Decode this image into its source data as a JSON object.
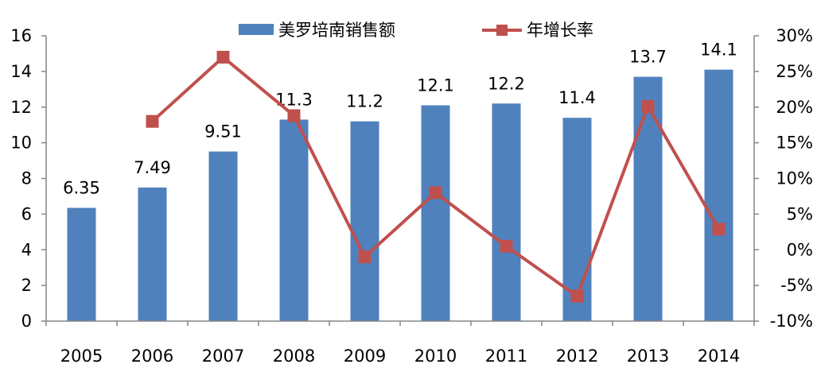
{
  "chart_data": {
    "type": "bar",
    "categories": [
      "2005",
      "2006",
      "2007",
      "2008",
      "2009",
      "2010",
      "2011",
      "2012",
      "2013",
      "2014"
    ],
    "series": [
      {
        "name": "美罗培南销售额",
        "type": "bar",
        "axis": "left",
        "values": [
          6.35,
          7.49,
          9.51,
          11.3,
          11.2,
          12.1,
          12.2,
          11.4,
          13.7,
          14.1
        ],
        "data_labels": [
          "6.35",
          "7.49",
          "9.51",
          "11.3",
          "11.2",
          "12.1",
          "12.2",
          "11.4",
          "13.7",
          "14.1"
        ]
      },
      {
        "name": "年增长率",
        "type": "line",
        "axis": "right",
        "values": [
          null,
          18.0,
          27.0,
          18.8,
          -1.0,
          8.0,
          0.5,
          -6.5,
          20.1,
          2.9
        ]
      }
    ],
    "left_axis": {
      "min": 0,
      "max": 16,
      "step": 2,
      "tick_labels": [
        "0",
        "2",
        "4",
        "6",
        "8",
        "10",
        "12",
        "14",
        "16"
      ]
    },
    "right_axis": {
      "min": -10,
      "max": 30,
      "step": 5,
      "tick_labels": [
        "-10%",
        "-5%",
        "0%",
        "5%",
        "10%",
        "15%",
        "20%",
        "25%",
        "30%"
      ]
    },
    "grid": false,
    "legend_position": "top",
    "colors": {
      "bar": "#4F81BD",
      "line": "#C0504D",
      "marker": "#C0504D"
    }
  }
}
